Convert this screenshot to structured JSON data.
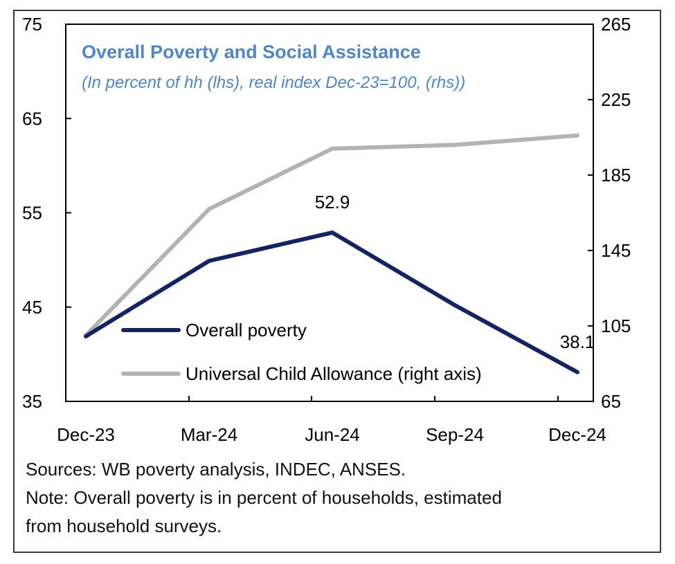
{
  "chart_data": {
    "type": "line",
    "title": "Overall Poverty and Social Assistance",
    "subtitle": "(In percent of hh (lhs), real index Dec-23=100, (rhs))",
    "categories": [
      "Dec-23",
      "Mar-24",
      "Jun-24",
      "Sep-24",
      "Dec-24"
    ],
    "y_left": {
      "ylim": [
        35,
        75
      ],
      "ticks": [
        35,
        45,
        55,
        65,
        75
      ]
    },
    "y_right": {
      "ylim": [
        65,
        265
      ],
      "ticks": [
        65,
        105,
        145,
        185,
        225,
        265
      ]
    },
    "series": [
      {
        "name": "Overall poverty",
        "axis": "left",
        "color": "#14245e",
        "values": [
          41.9,
          49.9,
          52.9,
          45.2,
          38.1
        ]
      },
      {
        "name": "Universal Child Allowance (right axis)",
        "axis": "right",
        "color": "#b3b3b3",
        "values": [
          100,
          167,
          199,
          201,
          206
        ]
      }
    ],
    "annotations": [
      {
        "text": "52.9",
        "series": 0,
        "index": 2
      },
      {
        "text": "38.1",
        "series": 0,
        "index": 4
      }
    ],
    "legend": "inside-bottom-left",
    "grid": false
  },
  "notes": {
    "sources": "Sources: WB poverty analysis, INDEC, ANSES.",
    "note_line1": "Note: Overall poverty is in percent of households, estimated",
    "note_line2": "from household surveys."
  },
  "colors": {
    "title": "#4f86c6",
    "axis": "#000000"
  }
}
